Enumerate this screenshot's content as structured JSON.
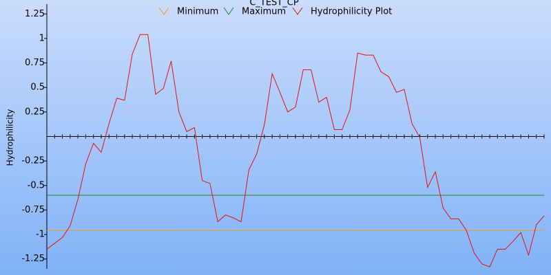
{
  "chart_data": {
    "type": "line",
    "title": "C_TEST_CP",
    "y_label": "Hydrophilicity",
    "ylim": [
      -1.35,
      1.35
    ],
    "yticks": [
      1.25,
      1,
      0.75,
      0.5,
      0.25,
      -0.25,
      -0.5,
      -0.75,
      -1,
      -1.25
    ],
    "series": [
      {
        "name": "Minimum",
        "color": "#e8a030",
        "level": -0.96
      },
      {
        "name": "Maximum",
        "color": "#1a8a2a",
        "level": -0.6
      },
      {
        "name": "Hydrophilicity Plot",
        "color": "#e81010",
        "values": [
          -1.15,
          -1.09,
          -1.03,
          -0.91,
          -0.64,
          -0.28,
          -0.07,
          -0.16,
          0.13,
          0.39,
          0.37,
          0.84,
          1.04,
          1.04,
          0.43,
          0.49,
          0.77,
          0.25,
          0.05,
          0.09,
          -0.45,
          -0.48,
          -0.87,
          -0.8,
          -0.83,
          -0.87,
          -0.34,
          -0.18,
          0.12,
          0.64,
          0.45,
          0.25,
          0.3,
          0.68,
          0.68,
          0.35,
          0.4,
          0.07,
          0.07,
          0.27,
          0.85,
          0.83,
          0.83,
          0.66,
          0.61,
          0.45,
          0.48,
          0.13,
          -0.01,
          -0.52,
          -0.36,
          -0.73,
          -0.84,
          -0.84,
          -0.96,
          -1.19,
          -1.3,
          -1.33,
          -1.15,
          -1.15,
          -1.07,
          -0.98,
          -1.21,
          -0.9,
          -0.81
        ]
      }
    ]
  }
}
